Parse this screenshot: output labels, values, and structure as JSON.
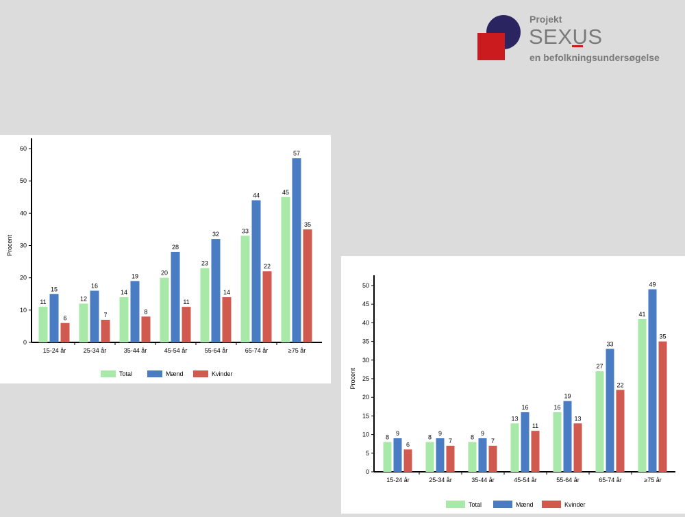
{
  "logo": {
    "line1": "Projekt",
    "line2": "SEXUS",
    "line3": "en befolkningsundersøgelse"
  },
  "colors": {
    "total": "#a8e8a8",
    "maend": "#4a7cc4",
    "kvinder": "#d05a50",
    "axis": "#000000"
  },
  "chart_data": [
    {
      "type": "bar",
      "title": "",
      "xlabel": "",
      "ylabel": "Procent",
      "ylim": [
        0,
        60
      ],
      "yticks": [
        0,
        10,
        20,
        30,
        40,
        50,
        60
      ],
      "categories": [
        "15-24 år",
        "25-34 år",
        "35-44 år",
        "45-54 år",
        "55-64 år",
        "65-74 år",
        "≥75 år"
      ],
      "series": [
        {
          "name": "Total",
          "values": [
            11,
            12,
            14,
            20,
            23,
            33,
            45
          ]
        },
        {
          "name": "Mænd",
          "values": [
            15,
            16,
            19,
            28,
            32,
            44,
            57
          ]
        },
        {
          "name": "Kvinder",
          "values": [
            6,
            7,
            8,
            11,
            14,
            22,
            35
          ]
        }
      ],
      "legend": "bottom"
    },
    {
      "type": "bar",
      "title": "",
      "xlabel": "",
      "ylabel": "Procent",
      "ylim": [
        0,
        50
      ],
      "yticks": [
        0,
        5,
        10,
        15,
        20,
        25,
        30,
        35,
        40,
        45,
        50
      ],
      "categories": [
        "15-24 år",
        "25-34 år",
        "35-44 år",
        "45-54 år",
        "55-64 år",
        "65-74 år",
        "≥75 år"
      ],
      "series": [
        {
          "name": "Total",
          "values": [
            8,
            8,
            8,
            13,
            16,
            27,
            41
          ]
        },
        {
          "name": "Mænd",
          "values": [
            9,
            9,
            9,
            16,
            19,
            33,
            49
          ]
        },
        {
          "name": "Kvinder",
          "values": [
            6,
            7,
            7,
            11,
            13,
            22,
            35
          ]
        }
      ],
      "legend": "bottom"
    }
  ]
}
